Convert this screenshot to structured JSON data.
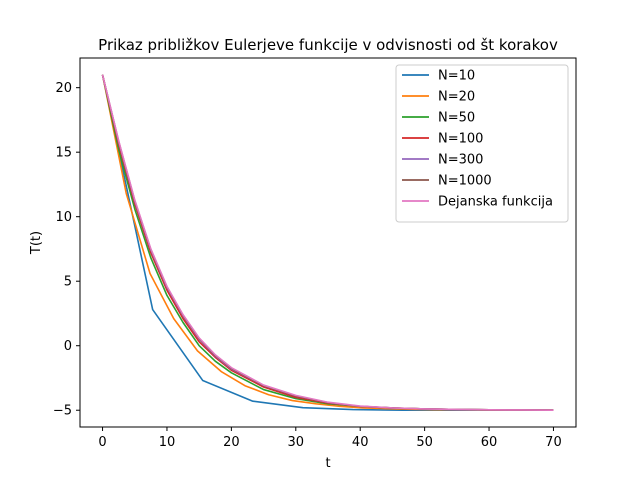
{
  "chart_data": {
    "type": "line",
    "title": "Prikaz približkov Eulerjeve funkcije v odvisnosti od št korakov",
    "xlabel": "t",
    "ylabel": "T(t)",
    "xlim": [
      -3.5,
      73.5
    ],
    "ylim": [
      -6.3,
      22.3
    ],
    "xticks": [
      0,
      10,
      20,
      30,
      40,
      50,
      60,
      70
    ],
    "yticks": [
      -5,
      0,
      5,
      10,
      15,
      20
    ],
    "grid": false,
    "legend_position": "top-right",
    "series": [
      {
        "name": "N=10",
        "color": "#1f77b4",
        "x": [
          0,
          7.78,
          15.56,
          23.33,
          31.11,
          38.89,
          46.67,
          54.44,
          62.22,
          70
        ],
        "y": [
          21,
          2.8,
          -2.7,
          -4.3,
          -4.8,
          -4.95,
          -5.0,
          -5.0,
          -5.0,
          -5.0
        ]
      },
      {
        "name": "N=20",
        "color": "#ff7f0e",
        "x": [
          0,
          3.68,
          7.37,
          11.05,
          14.74,
          18.42,
          22.11,
          25.79,
          29.47,
          33.16,
          36.84,
          40.53,
          44.21,
          47.89,
          51.58,
          55.26,
          58.95,
          62.63,
          66.32,
          70
        ],
        "y": [
          21,
          11.8,
          5.6,
          2.1,
          -0.4,
          -2.0,
          -3.1,
          -3.8,
          -4.25,
          -4.5,
          -4.7,
          -4.82,
          -4.88,
          -4.93,
          -4.96,
          -4.97,
          -4.98,
          -4.99,
          -5.0,
          -5.0
        ]
      },
      {
        "name": "N=50",
        "color": "#2ca02c",
        "x": [
          0,
          2.5,
          5,
          7.5,
          10,
          12.5,
          15,
          17.5,
          20,
          25,
          30,
          35,
          40,
          45,
          50,
          55,
          60,
          65,
          70
        ],
        "y": [
          21,
          15.2,
          10.6,
          6.8,
          3.9,
          1.8,
          0.0,
          -1.2,
          -2.1,
          -3.4,
          -4.1,
          -4.5,
          -4.7,
          -4.83,
          -4.9,
          -4.94,
          -4.97,
          -4.98,
          -5.0
        ]
      },
      {
        "name": "N=100",
        "color": "#d62728",
        "x": [
          0,
          2.5,
          5,
          7.5,
          10,
          12.5,
          15,
          17.5,
          20,
          25,
          30,
          35,
          40,
          45,
          50,
          55,
          60,
          65,
          70
        ],
        "y": [
          21,
          15.6,
          11.0,
          7.2,
          4.3,
          2.1,
          0.3,
          -0.9,
          -1.9,
          -3.2,
          -4.0,
          -4.45,
          -4.7,
          -4.83,
          -4.9,
          -4.94,
          -4.97,
          -4.98,
          -5.0
        ]
      },
      {
        "name": "N=300",
        "color": "#9467bd",
        "x": [
          0,
          2.5,
          5,
          7.5,
          10,
          12.5,
          15,
          17.5,
          20,
          25,
          30,
          35,
          40,
          45,
          50,
          55,
          60,
          65,
          70
        ],
        "y": [
          21,
          15.8,
          11.2,
          7.4,
          4.5,
          2.3,
          0.5,
          -0.8,
          -1.8,
          -3.1,
          -3.9,
          -4.4,
          -4.7,
          -4.82,
          -4.9,
          -4.94,
          -4.97,
          -4.98,
          -5.0
        ]
      },
      {
        "name": "N=1000",
        "color": "#8c564b",
        "x": [
          0,
          2.5,
          5,
          7.5,
          10,
          12.5,
          15,
          17.5,
          20,
          25,
          30,
          35,
          40,
          45,
          50,
          55,
          60,
          65,
          70
        ],
        "y": [
          21,
          15.85,
          11.25,
          7.45,
          4.55,
          2.35,
          0.55,
          -0.75,
          -1.75,
          -3.1,
          -3.9,
          -4.4,
          -4.7,
          -4.82,
          -4.9,
          -4.94,
          -4.97,
          -4.98,
          -5.0
        ]
      },
      {
        "name": "Dejanska funkcija",
        "color": "#e377c2",
        "x": [
          0,
          2.5,
          5,
          7.5,
          10,
          12.5,
          15,
          17.5,
          20,
          25,
          30,
          35,
          40,
          45,
          50,
          55,
          60,
          65,
          70
        ],
        "y": [
          21,
          15.9,
          11.3,
          7.5,
          4.6,
          2.4,
          0.6,
          -0.7,
          -1.7,
          -3.05,
          -3.85,
          -4.38,
          -4.68,
          -4.82,
          -4.9,
          -4.94,
          -4.97,
          -4.98,
          -5.0
        ]
      }
    ]
  }
}
